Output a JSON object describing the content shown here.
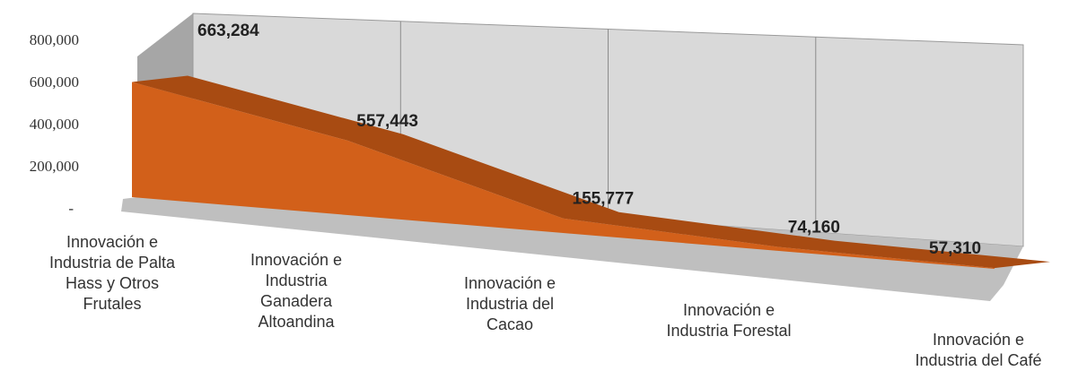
{
  "chart_data": {
    "type": "area",
    "style": "3d",
    "categories": [
      [
        "Innovación e",
        "Industria de Palta",
        "Hass y Otros",
        "Frutales"
      ],
      [
        "Innovación e",
        "Industria",
        "Ganadera",
        "Altoandina"
      ],
      [
        "Innovación e",
        "Industria del",
        "Cacao"
      ],
      [
        "Innovación e",
        "Industria Forestal"
      ],
      [
        "Innovación e",
        "Industria del Café"
      ]
    ],
    "values": [
      663284,
      557443,
      155777,
      74160,
      57310
    ],
    "data_labels": [
      "663,284",
      "557,443",
      "155,777",
      "74,160",
      "57,310"
    ],
    "yticks": [
      {
        "value": 0,
        "label": "-"
      },
      {
        "value": 200000,
        "label": "200,000"
      },
      {
        "value": 400000,
        "label": "400,000"
      },
      {
        "value": 600000,
        "label": "600,000"
      },
      {
        "value": 800000,
        "label": "800,000"
      }
    ],
    "ylim": [
      0,
      800000
    ],
    "title": "",
    "xlabel": "",
    "ylabel": "",
    "grid": "vertical",
    "legend": "none",
    "colors": {
      "area_front": "#d2601a",
      "area_top": "#a84b12",
      "back_wall": "#d9d9d9",
      "side_wall": "#a6a6a6",
      "floor": "#bfbfbf",
      "gridline": "#8c8c8c"
    }
  }
}
